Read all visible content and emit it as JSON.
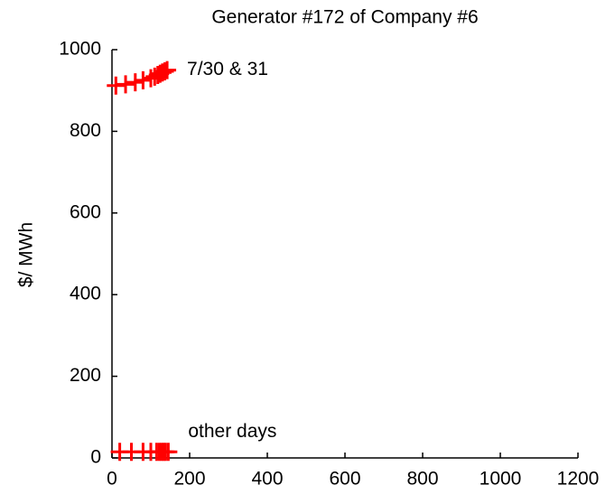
{
  "chart_data": {
    "type": "scatter",
    "title": "Generator #172 of Company #6",
    "y_label": "$/ MWh",
    "xlim": [
      0,
      1200
    ],
    "xticks": [
      0,
      200,
      400,
      600,
      800,
      1000,
      1200
    ],
    "ylim": [
      0,
      1000
    ],
    "yticks": [
      0,
      200,
      400,
      600,
      800,
      1000
    ],
    "grid": false,
    "series": [
      {
        "name": "7/30 & 31",
        "color": "#ff0000",
        "x": [
          10,
          35,
          60,
          80,
          100,
          110,
          118,
          124,
          130,
          136,
          142
        ],
        "values": [
          912,
          915,
          920,
          925,
          930,
          934,
          938,
          941,
          944,
          947,
          950
        ]
      },
      {
        "name": "other days",
        "color": "#ff0000",
        "x": [
          20,
          50,
          80,
          100,
          115,
          122,
          128,
          133,
          138,
          145
        ],
        "values": [
          15,
          15,
          15,
          15,
          15,
          15,
          15,
          15,
          15,
          15
        ]
      }
    ]
  }
}
